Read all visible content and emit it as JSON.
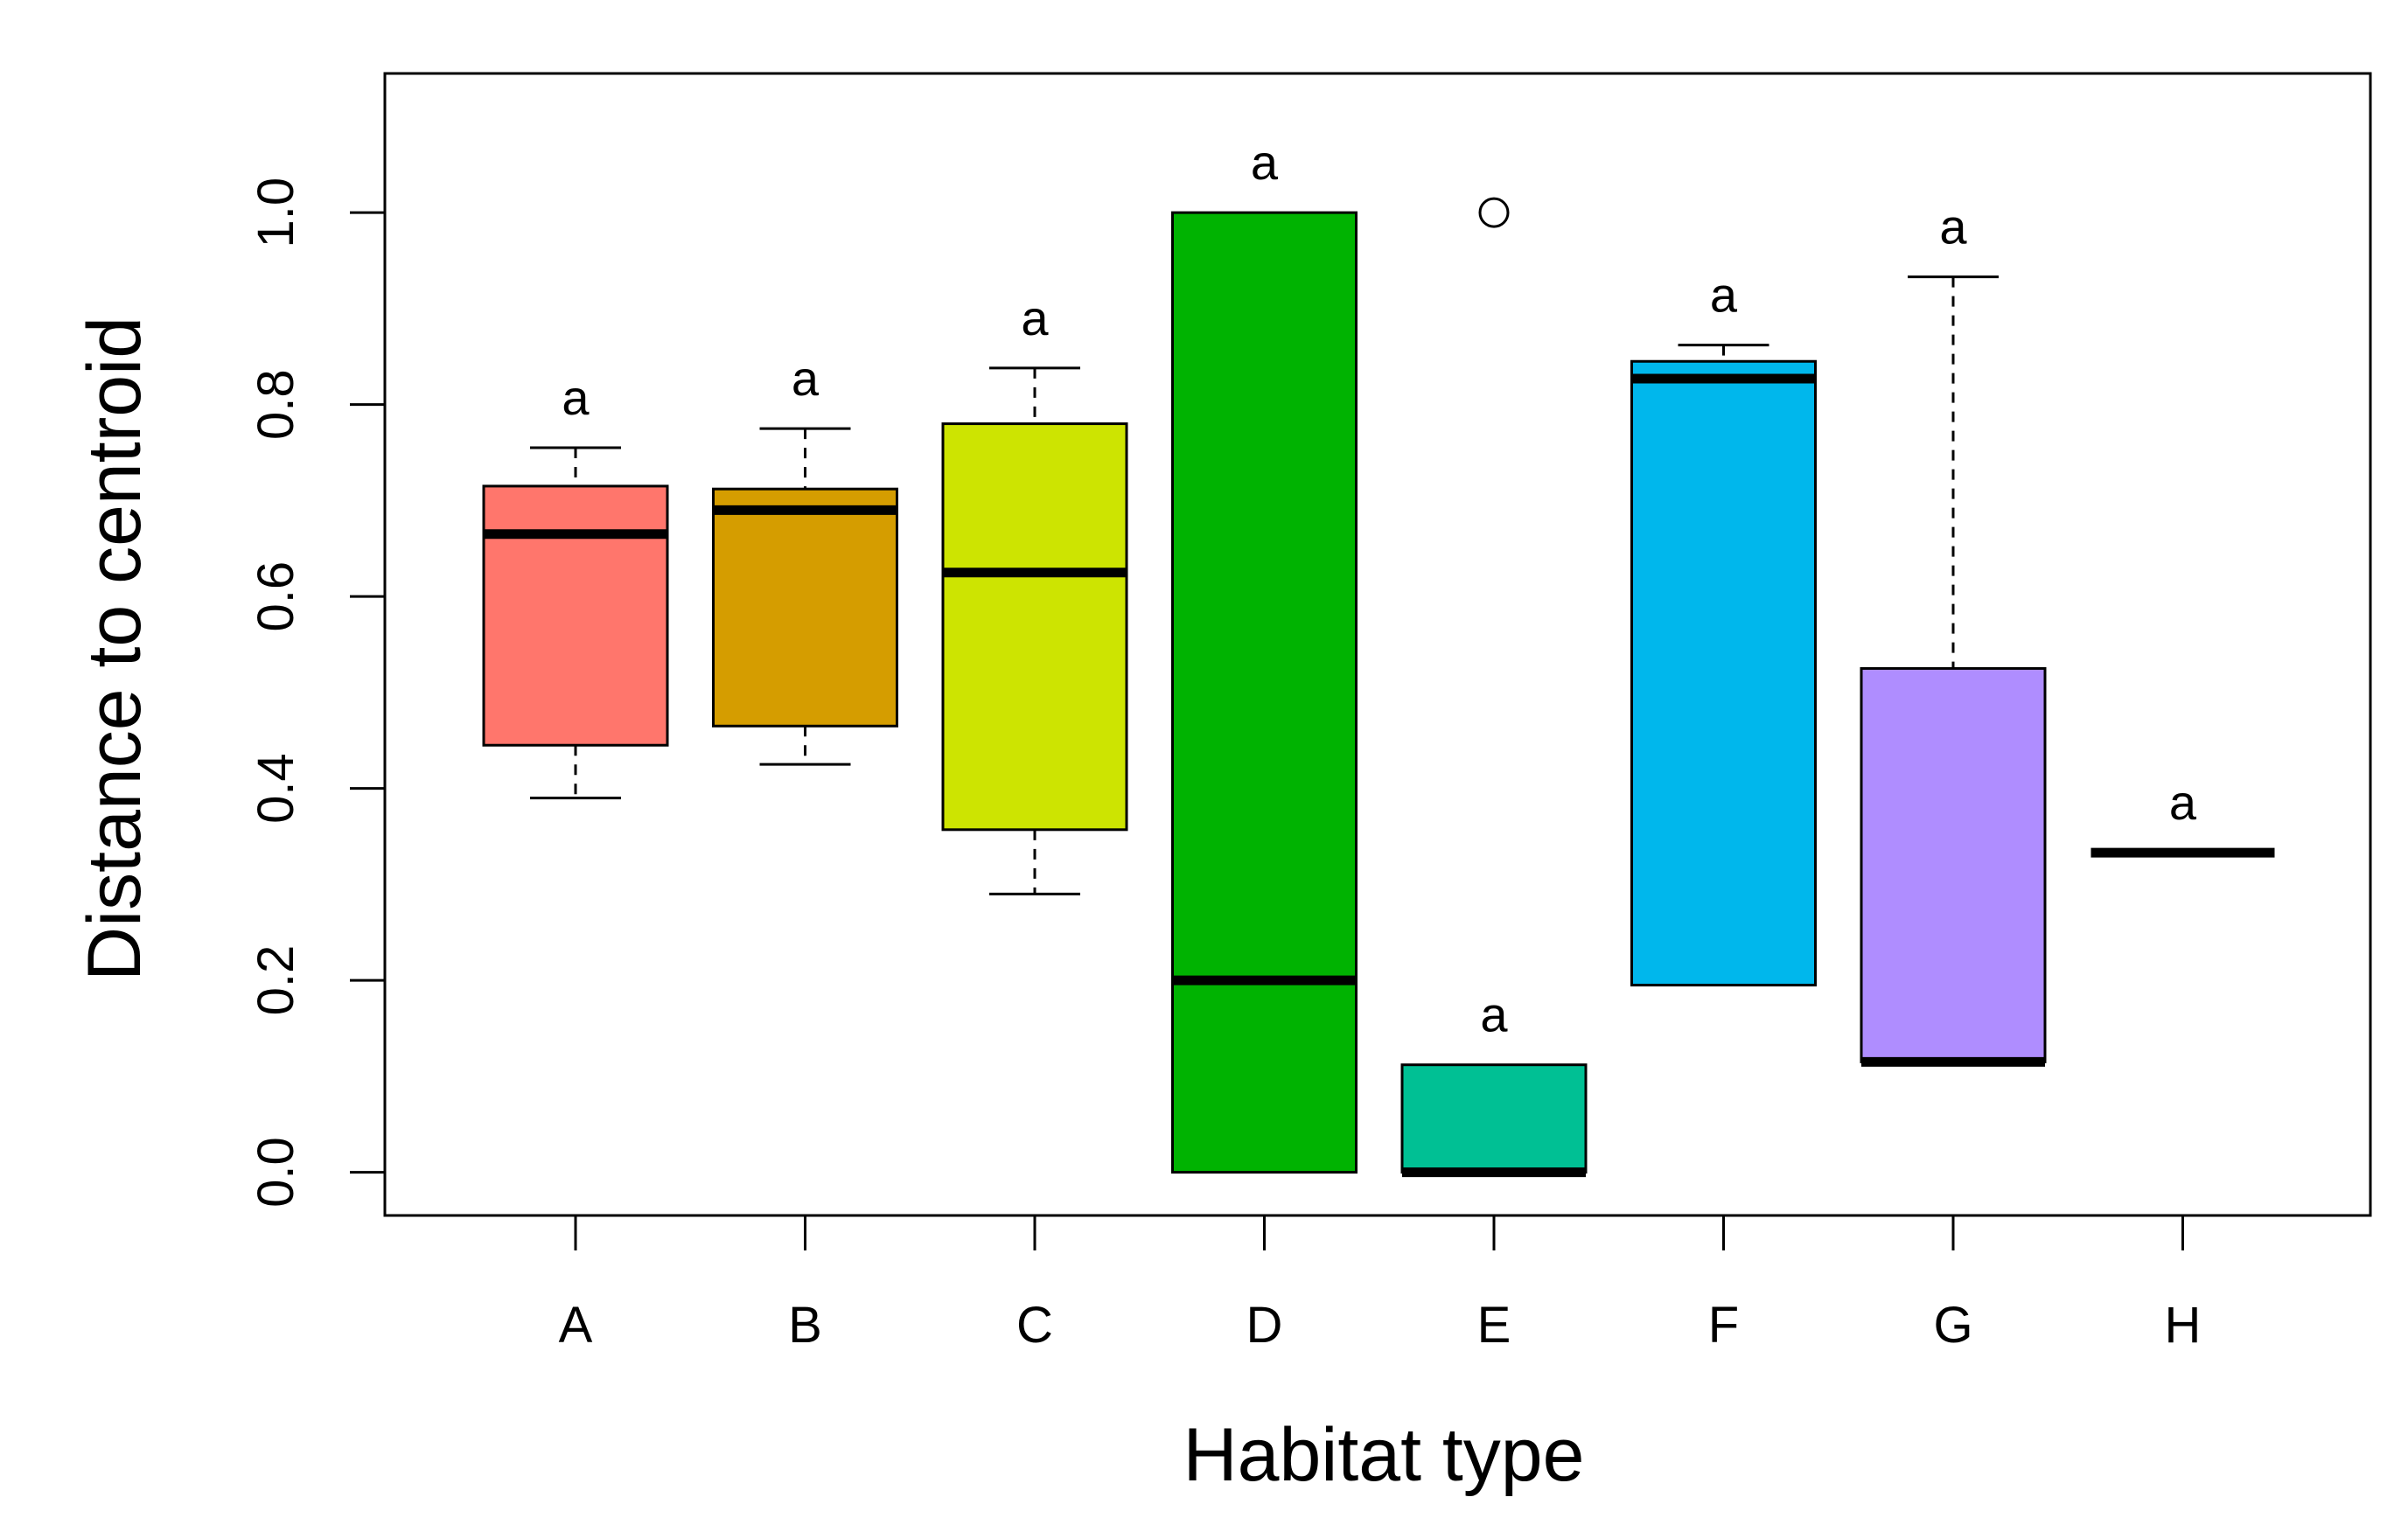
{
  "chart_data": {
    "type": "boxplot",
    "title": "",
    "xlabel": "Habitat type",
    "ylabel": "Distance to centroid",
    "ylim": [
      -0.045,
      1.145
    ],
    "yticks": [
      0.0,
      0.2,
      0.4,
      0.6,
      0.8,
      1.0
    ],
    "ytick_labels": [
      "0.0",
      "0.2",
      "0.4",
      "0.6",
      "0.8",
      "1.0"
    ],
    "grid": false,
    "categories": [
      "A",
      "B",
      "C",
      "D",
      "E",
      "F",
      "G",
      "H"
    ],
    "groups": [
      {
        "name": "A",
        "color": "#FF766C",
        "whisker_low": 0.39,
        "q1": 0.445,
        "median": 0.665,
        "q3": 0.715,
        "whisker_high": 0.755,
        "outliers": [],
        "letter": "a"
      },
      {
        "name": "B",
        "color": "#D59D00",
        "whisker_low": 0.425,
        "q1": 0.465,
        "median": 0.69,
        "q3": 0.712,
        "whisker_high": 0.775,
        "outliers": [],
        "letter": "a"
      },
      {
        "name": "C",
        "color": "#CDE401",
        "whisker_low": 0.29,
        "q1": 0.357,
        "median": 0.625,
        "q3": 0.78,
        "whisker_high": 0.838,
        "outliers": [],
        "letter": "a"
      },
      {
        "name": "D",
        "color": "#00B301",
        "whisker_low": 0.0,
        "q1": 0.0,
        "median": 0.2,
        "q3": 1.0,
        "whisker_high": 1.0,
        "outliers": [],
        "letter": "a"
      },
      {
        "name": "E",
        "color": "#00C094",
        "whisker_low": 0.0,
        "q1": 0.0,
        "median": 0.0,
        "q3": 0.112,
        "whisker_high": 0.112,
        "outliers": [
          1.0
        ],
        "letter": "a"
      },
      {
        "name": "F",
        "color": "#00B7EC",
        "whisker_low": 0.195,
        "q1": 0.195,
        "median": 0.827,
        "q3": 0.845,
        "whisker_high": 0.862,
        "outliers": [],
        "letter": "a"
      },
      {
        "name": "G",
        "color": "#AF8DFF",
        "whisker_low": 0.115,
        "q1": 0.115,
        "median": 0.115,
        "q3": 0.525,
        "whisker_high": 0.933,
        "outliers": [],
        "letter": "a"
      },
      {
        "name": "H",
        "color": "#000000",
        "whisker_low": 0.333,
        "q1": 0.333,
        "median": 0.333,
        "q3": 0.333,
        "whisker_high": 0.333,
        "outliers": [],
        "letter": "a"
      }
    ]
  }
}
